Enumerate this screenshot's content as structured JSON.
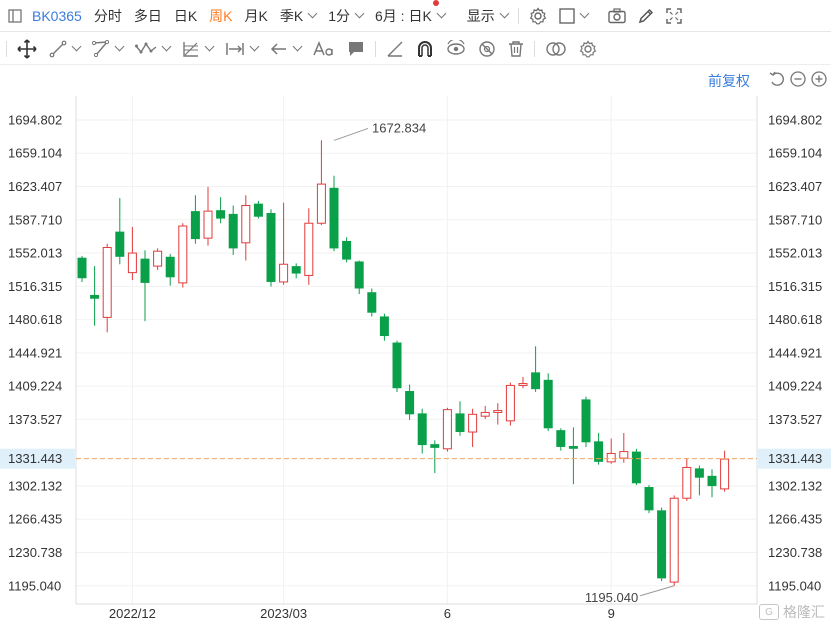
{
  "toolbar": {
    "symbol": "BK0365",
    "periods": [
      "分时",
      "多日",
      "日K",
      "周K",
      "月K",
      "季K"
    ],
    "active_period": "周K",
    "minute": "1分",
    "date_selector": "6月 : 日K",
    "display": "显示",
    "colors": {
      "active": "#ff7b24",
      "link": "#3b7ddd",
      "red_dot": "#e23b3b"
    }
  },
  "adjust": {
    "label": "前复权"
  },
  "watermark": {
    "text": "格隆汇"
  },
  "chart_data": {
    "type": "candlestick",
    "y_axis": {
      "ticks": [
        1694.802,
        1659.104,
        1623.407,
        1587.71,
        1552.013,
        1516.315,
        1480.618,
        1444.921,
        1409.224,
        1373.527,
        1331.443,
        1302.132,
        1266.435,
        1230.738,
        1195.04
      ],
      "tick_labels": [
        "1694.802",
        "1659.104",
        "1623.407",
        "1587.710",
        "1552.013",
        "1516.315",
        "1480.618",
        "1444.921",
        "1409.224",
        "1373.527",
        "1331.443",
        "1302.132",
        "1266.435",
        "1230.738",
        "1195.040"
      ],
      "range": [
        1175.5,
        1720.5
      ],
      "sides": "both"
    },
    "x_axis": {
      "labels": [
        {
          "text": "2022/12",
          "index": 4
        },
        {
          "text": "2023/03",
          "index": 16
        },
        {
          "text": "6",
          "index": 29
        },
        {
          "text": "9",
          "index": 42
        }
      ]
    },
    "current_price": {
      "value": 1331.443,
      "label": "1331.443",
      "color": "#f5a25d"
    },
    "annotations": [
      {
        "text": "1672.834",
        "index": 20,
        "value": 1672.834,
        "kind": "high"
      },
      {
        "text": "1195.040",
        "index": 47,
        "value": 1195.04,
        "kind": "low"
      }
    ],
    "colors": {
      "up": "#e23b3b",
      "down": "#0aa04a"
    },
    "candles": [
      {
        "o": 1547,
        "c": 1525,
        "h": 1549,
        "l": 1521
      },
      {
        "o": 1507,
        "c": 1503,
        "h": 1538,
        "l": 1474
      },
      {
        "o": 1483,
        "c": 1558,
        "h": 1562,
        "l": 1467
      },
      {
        "o": 1575,
        "c": 1548,
        "h": 1611,
        "l": 1540
      },
      {
        "o": 1531,
        "c": 1552,
        "h": 1580,
        "l": 1523
      },
      {
        "o": 1546,
        "c": 1520,
        "h": 1555,
        "l": 1479
      },
      {
        "o": 1538,
        "c": 1554,
        "h": 1557,
        "l": 1534
      },
      {
        "o": 1548,
        "c": 1526,
        "h": 1551,
        "l": 1517
      },
      {
        "o": 1520,
        "c": 1581,
        "h": 1584,
        "l": 1515
      },
      {
        "o": 1597,
        "c": 1567,
        "h": 1614,
        "l": 1562
      },
      {
        "o": 1568,
        "c": 1597,
        "h": 1623,
        "l": 1560
      },
      {
        "o": 1598,
        "c": 1589,
        "h": 1612,
        "l": 1584
      },
      {
        "o": 1594,
        "c": 1557,
        "h": 1603,
        "l": 1550
      },
      {
        "o": 1563,
        "c": 1603,
        "h": 1614,
        "l": 1544
      },
      {
        "o": 1605,
        "c": 1591,
        "h": 1608,
        "l": 1589
      },
      {
        "o": 1595,
        "c": 1521,
        "h": 1599,
        "l": 1516
      },
      {
        "o": 1521,
        "c": 1540,
        "h": 1606,
        "l": 1518
      },
      {
        "o": 1538,
        "c": 1530,
        "h": 1541,
        "l": 1525
      },
      {
        "o": 1528,
        "c": 1584,
        "h": 1600,
        "l": 1518
      },
      {
        "o": 1584,
        "c": 1626,
        "h": 1673,
        "l": 1582
      },
      {
        "o": 1622,
        "c": 1557,
        "h": 1635,
        "l": 1554
      },
      {
        "o": 1565,
        "c": 1545,
        "h": 1569,
        "l": 1542
      },
      {
        "o": 1543,
        "c": 1514,
        "h": 1544,
        "l": 1508
      },
      {
        "o": 1510,
        "c": 1488,
        "h": 1514,
        "l": 1484
      },
      {
        "o": 1484,
        "c": 1463,
        "h": 1487,
        "l": 1458
      },
      {
        "o": 1456,
        "c": 1407,
        "h": 1458,
        "l": 1403
      },
      {
        "o": 1404,
        "c": 1379,
        "h": 1411,
        "l": 1373
      },
      {
        "o": 1380,
        "c": 1346,
        "h": 1385,
        "l": 1337
      },
      {
        "o": 1347,
        "c": 1343,
        "h": 1351,
        "l": 1316
      },
      {
        "o": 1342,
        "c": 1384,
        "h": 1386,
        "l": 1339
      },
      {
        "o": 1380,
        "c": 1360,
        "h": 1393,
        "l": 1356
      },
      {
        "o": 1360,
        "c": 1379,
        "h": 1385,
        "l": 1344
      },
      {
        "o": 1377,
        "c": 1381,
        "h": 1388,
        "l": 1374
      },
      {
        "o": 1381,
        "c": 1383,
        "h": 1391,
        "l": 1368
      },
      {
        "o": 1372,
        "c": 1410,
        "h": 1413,
        "l": 1367
      },
      {
        "o": 1410,
        "c": 1412,
        "h": 1419,
        "l": 1407
      },
      {
        "o": 1424,
        "c": 1406,
        "h": 1452,
        "l": 1403
      },
      {
        "o": 1416,
        "c": 1364,
        "h": 1423,
        "l": 1361
      },
      {
        "o": 1362,
        "c": 1344,
        "h": 1364,
        "l": 1340
      },
      {
        "o": 1345,
        "c": 1342,
        "h": 1365,
        "l": 1304
      },
      {
        "o": 1395,
        "c": 1349,
        "h": 1398,
        "l": 1344
      },
      {
        "o": 1350,
        "c": 1328,
        "h": 1359,
        "l": 1325
      },
      {
        "o": 1328,
        "c": 1337,
        "h": 1353,
        "l": 1326
      },
      {
        "o": 1332,
        "c": 1339,
        "h": 1359,
        "l": 1327
      },
      {
        "o": 1339,
        "c": 1305,
        "h": 1342,
        "l": 1303
      },
      {
        "o": 1301,
        "c": 1276,
        "h": 1303,
        "l": 1273
      },
      {
        "o": 1276,
        "c": 1203,
        "h": 1279,
        "l": 1200
      },
      {
        "o": 1199,
        "c": 1289,
        "h": 1292,
        "l": 1195
      },
      {
        "o": 1289,
        "c": 1322,
        "h": 1332,
        "l": 1286
      },
      {
        "o": 1321,
        "c": 1311,
        "h": 1324,
        "l": 1292
      },
      {
        "o": 1313,
        "c": 1302,
        "h": 1320,
        "l": 1290
      },
      {
        "o": 1299,
        "c": 1331,
        "h": 1340,
        "l": 1296
      }
    ]
  }
}
